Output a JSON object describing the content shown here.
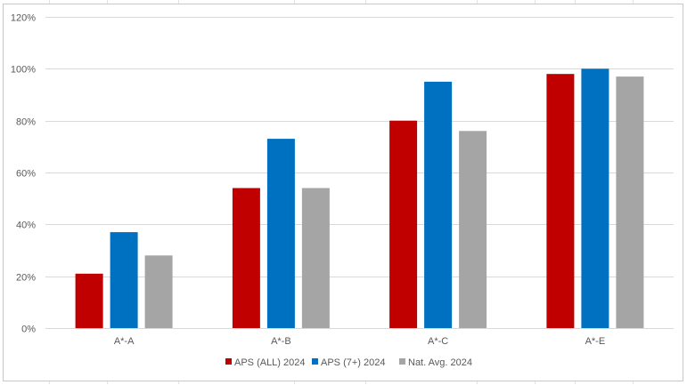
{
  "chart_data": {
    "type": "bar",
    "categories": [
      "A*-A",
      "A*-B",
      "A*-C",
      "A*-E"
    ],
    "series": [
      {
        "name": "APS (ALL) 2024",
        "color": "#c00000",
        "values": [
          21,
          54,
          80,
          98
        ]
      },
      {
        "name": "APS (7+) 2024",
        "color": "#0070c0",
        "values": [
          37,
          73,
          95,
          100
        ]
      },
      {
        "name": "Nat. Avg. 2024",
        "color": "#a5a5a5",
        "values": [
          28,
          54,
          76,
          97
        ]
      }
    ],
    "ylim": [
      0,
      120
    ],
    "yticks": [
      0,
      20,
      40,
      60,
      80,
      100,
      120
    ],
    "ytick_format": "percent",
    "grid": true,
    "legend_position": "bottom",
    "title": "",
    "xlabel": "",
    "ylabel": ""
  }
}
